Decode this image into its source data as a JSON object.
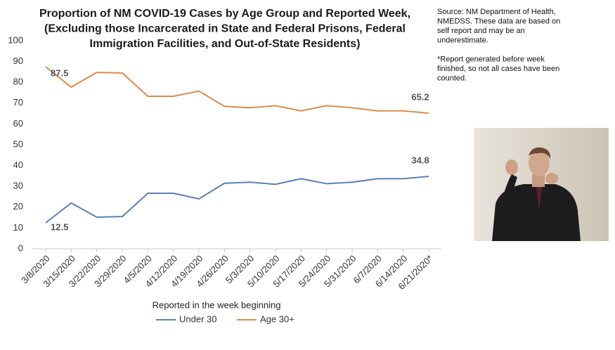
{
  "chart_data": {
    "type": "line",
    "title": [
      "Proportion of NM COVID-19 Cases by Age Group and Reported Week,",
      "(Excluding those Incarcerated in State and Federal Prisons, Federal",
      "Immigration Facilities, and Out-of-State Residents)"
    ],
    "annotations": [
      [
        "Source: NM Department of Health,",
        "NMEDSS. These data are based on",
        "self report and may be an",
        "underestimate."
      ],
      [
        "*Report generated before week",
        "finished, so not all cases have been",
        "counted."
      ]
    ],
    "x_label": "Reported in the week beginning",
    "categories": [
      "3/8/2020",
      "3/15/2020",
      "3/22/2020",
      "3/29/2020",
      "4/5/2020",
      "4/12/2020",
      "4/19/2020",
      "4/26/2020",
      "5/3/2020",
      "5/10/2020",
      "5/17/2020",
      "5/24/2020",
      "5/31/2020",
      "6/7/2020",
      "6/14/2020",
      "6/21/2020*"
    ],
    "series": [
      {
        "name": "Under 30",
        "color": "#5b80b6",
        "values": [
          12.5,
          22,
          15.2,
          15.5,
          26.7,
          26.7,
          24,
          31.5,
          32,
          31,
          33.7,
          31.3,
          32,
          33.7,
          33.7,
          34.8
        ]
      },
      {
        "name": "Age 30+",
        "color": "#e08a4c",
        "values": [
          87.5,
          77.7,
          84.8,
          84.5,
          73.3,
          73.3,
          75.8,
          68.5,
          67.8,
          68.8,
          66.3,
          68.8,
          67.8,
          66.3,
          66.3,
          65.2
        ]
      }
    ],
    "ylim": [
      0,
      100
    ],
    "yticks": [
      0,
      10,
      20,
      30,
      40,
      50,
      60,
      70,
      80,
      90,
      100
    ],
    "grid": false,
    "legend": "bottom"
  }
}
